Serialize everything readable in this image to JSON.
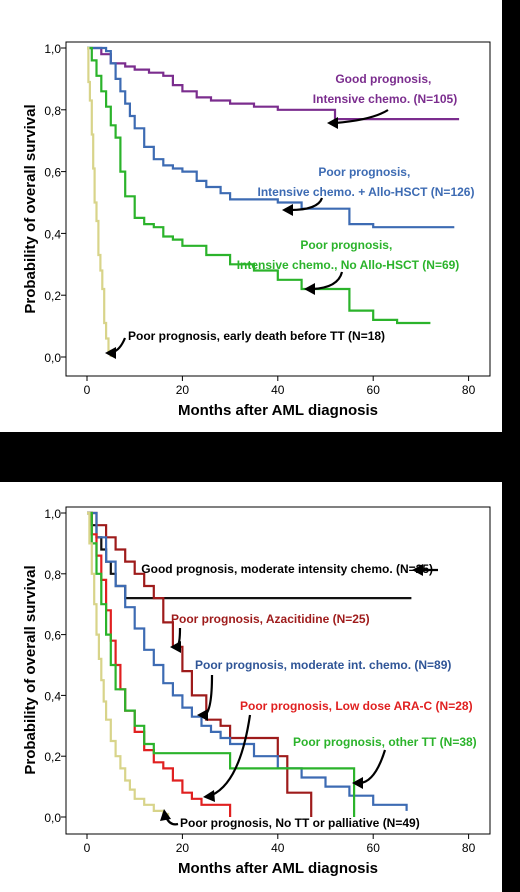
{
  "charts": [
    {
      "type": "line",
      "subtype": "kaplan-meier",
      "title": "",
      "xlabel": "Months after AML diagnosis",
      "ylabel": "Probability of overall survival",
      "xlim": [
        0,
        80
      ],
      "ylim": [
        0,
        1
      ],
      "xticks": [
        "0",
        "20",
        "40",
        "60",
        "80"
      ],
      "yticks": [
        "0,0",
        "0,2",
        "0,4",
        "0,6",
        "0,8",
        "1,0"
      ],
      "grid": false,
      "legend": "none",
      "series": [
        {
          "label": "Good prognosis, Intensive chemo. (N=105)",
          "label_lines": [
            "Good prognosis,",
            "Intensive chemo. (N=105)"
          ],
          "color": "#7b2d8e",
          "x": [
            0,
            3,
            5,
            8,
            10,
            13,
            16,
            18,
            20,
            23,
            26,
            30,
            35,
            40,
            45,
            48,
            52,
            60,
            70,
            78
          ],
          "y": [
            1.0,
            0.98,
            0.95,
            0.94,
            0.93,
            0.92,
            0.91,
            0.88,
            0.86,
            0.84,
            0.83,
            0.82,
            0.81,
            0.8,
            0.8,
            0.8,
            0.77,
            0.77,
            0.77,
            0.77
          ]
        },
        {
          "label": "Poor prognosis, Intensive chemo. + Allo-HSCT (N=126)",
          "label_lines": [
            "Poor prognosis,",
            "Intensive chemo. + Allo-HSCT (N=126)"
          ],
          "color": "#3d6bb3",
          "x": [
            0,
            3,
            4,
            5,
            6,
            7,
            8,
            9,
            10,
            12,
            14,
            16,
            18,
            20,
            23,
            25,
            28,
            30,
            35,
            40,
            45,
            50,
            55,
            60,
            65,
            70,
            77
          ],
          "y": [
            1.0,
            1.0,
            0.99,
            0.95,
            0.9,
            0.86,
            0.82,
            0.78,
            0.74,
            0.68,
            0.64,
            0.62,
            0.61,
            0.6,
            0.57,
            0.55,
            0.53,
            0.51,
            0.51,
            0.5,
            0.48,
            0.48,
            0.43,
            0.42,
            0.42,
            0.42,
            0.42
          ]
        },
        {
          "label": "Poor prognosis, Intensive chemo., No Allo-HSCT (N=69)",
          "label_lines": [
            "Poor prognosis,",
            "Intensive chemo., No Allo-HSCT (N=69)"
          ],
          "color": "#2bb32b",
          "x": [
            0,
            1,
            2,
            3,
            4,
            5,
            6,
            7,
            8,
            10,
            12,
            14,
            16,
            18,
            20,
            25,
            30,
            35,
            40,
            45,
            50,
            55,
            60,
            65,
            72
          ],
          "y": [
            1.0,
            0.96,
            0.91,
            0.86,
            0.81,
            0.75,
            0.71,
            0.6,
            0.52,
            0.45,
            0.43,
            0.42,
            0.39,
            0.38,
            0.36,
            0.33,
            0.3,
            0.28,
            0.25,
            0.22,
            0.22,
            0.15,
            0.12,
            0.11,
            0.11
          ]
        },
        {
          "label": "Poor prognosis, early death before TT (N=18)",
          "label_lines": [
            "Poor prognosis, early death before TT (N=18)"
          ],
          "color": "#d8d48a",
          "x": [
            0,
            0.3,
            0.6,
            1.0,
            1.3,
            1.6,
            2.0,
            2.4,
            2.8,
            3.2,
            3.6,
            4.0,
            4.5,
            5.0
          ],
          "y": [
            1.0,
            0.89,
            0.83,
            0.72,
            0.61,
            0.5,
            0.44,
            0.33,
            0.28,
            0.22,
            0.11,
            0.06,
            0.02,
            0.0
          ]
        }
      ]
    },
    {
      "type": "line",
      "subtype": "kaplan-meier",
      "title": "",
      "xlabel": "Months after AML diagnosis",
      "ylabel": "Probability of overall survival",
      "xlim": [
        0,
        80
      ],
      "ylim": [
        0,
        1
      ],
      "xticks": [
        "0",
        "20",
        "40",
        "60",
        "80"
      ],
      "yticks": [
        "0,0",
        "0,2",
        "0,4",
        "0,6",
        "0,8",
        "1,0"
      ],
      "grid": false,
      "legend": "none",
      "series": [
        {
          "label": "Good prognosis, moderate intensity chemo. (N=25)",
          "label_lines": [
            "Good prognosis, moderate intensity chemo. (N=25)"
          ],
          "color": "#111111",
          "x": [
            0,
            1,
            2,
            3,
            4,
            5,
            6,
            8,
            10,
            20,
            30,
            40,
            50,
            60,
            68
          ],
          "y": [
            1.0,
            0.96,
            0.92,
            0.88,
            0.84,
            0.8,
            0.76,
            0.72,
            0.72,
            0.72,
            0.72,
            0.72,
            0.72,
            0.72,
            0.72
          ]
        },
        {
          "label": "Poor prognosis, Azacitidine (N=25)",
          "label_lines": [
            "Poor prognosis, Azacitidine (N=25)"
          ],
          "color": "#9e1b1b",
          "x": [
            0,
            2,
            4,
            6,
            8,
            10,
            12,
            14,
            16,
            18,
            20,
            22,
            25,
            28,
            30,
            35,
            40,
            42,
            47
          ],
          "y": [
            1.0,
            0.96,
            0.92,
            0.88,
            0.84,
            0.8,
            0.76,
            0.72,
            0.64,
            0.56,
            0.48,
            0.4,
            0.32,
            0.3,
            0.26,
            0.26,
            0.2,
            0.08,
            0.0
          ]
        },
        {
          "label": "Poor prognosis, moderate int. chemo. (N=89)",
          "label_lines": [
            "Poor prognosis, moderate int. chemo. (N=89)"
          ],
          "color": "#3d6bb3",
          "x": [
            0,
            2,
            4,
            6,
            8,
            10,
            12,
            14,
            16,
            18,
            20,
            22,
            24,
            26,
            28,
            30,
            35,
            40,
            45,
            50,
            55,
            60,
            67
          ],
          "y": [
            1.0,
            0.92,
            0.84,
            0.76,
            0.69,
            0.62,
            0.55,
            0.5,
            0.44,
            0.4,
            0.36,
            0.33,
            0.3,
            0.28,
            0.26,
            0.24,
            0.2,
            0.16,
            0.13,
            0.1,
            0.07,
            0.04,
            0.02
          ]
        },
        {
          "label": "Poor prognosis, Low dose ARA-C (N=28)",
          "label_lines": [
            "Poor prognosis, Low dose ARA-C (N=28)"
          ],
          "color": "#e02020",
          "x": [
            0,
            1,
            2,
            3,
            4,
            5,
            6,
            7,
            8,
            10,
            12,
            14,
            16,
            18,
            20,
            22,
            24,
            26,
            30
          ],
          "y": [
            1.0,
            0.93,
            0.86,
            0.78,
            0.68,
            0.58,
            0.5,
            0.42,
            0.35,
            0.28,
            0.22,
            0.18,
            0.16,
            0.12,
            0.08,
            0.06,
            0.04,
            0.04,
            0.0
          ]
        },
        {
          "label": "Poor prognosis, other TT (N=38)",
          "label_lines": [
            "Poor prognosis, other TT (N=38)"
          ],
          "color": "#2bb32b",
          "x": [
            0,
            1,
            2,
            3,
            4,
            5,
            6,
            8,
            10,
            12,
            14,
            20,
            30,
            40,
            50,
            54,
            56
          ],
          "y": [
            1.0,
            0.9,
            0.8,
            0.7,
            0.6,
            0.5,
            0.42,
            0.35,
            0.3,
            0.24,
            0.21,
            0.21,
            0.16,
            0.16,
            0.16,
            0.16,
            0.0
          ]
        },
        {
          "label": "Poor prognosis, No TT or palliative (N=49)",
          "label_lines": [
            "Poor prognosis, No TT or palliative (N=49)"
          ],
          "color": "#d8d48a",
          "x": [
            0,
            0.5,
            1,
            1.5,
            2,
            2.5,
            3,
            3.5,
            4,
            5,
            6,
            7,
            8,
            9,
            10,
            12,
            14,
            16,
            17
          ],
          "y": [
            1.0,
            0.9,
            0.8,
            0.7,
            0.6,
            0.52,
            0.45,
            0.38,
            0.32,
            0.25,
            0.2,
            0.16,
            0.12,
            0.09,
            0.06,
            0.04,
            0.02,
            0.01,
            0.0
          ]
        }
      ]
    }
  ]
}
